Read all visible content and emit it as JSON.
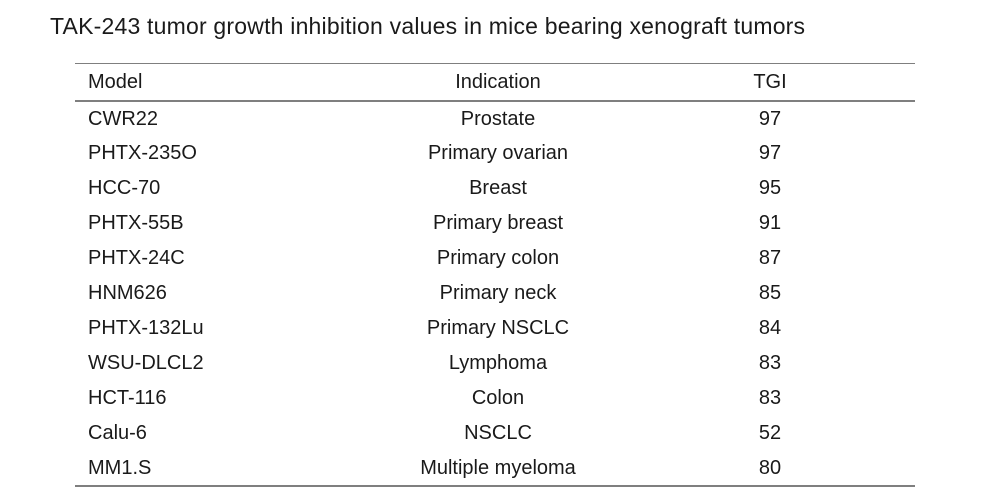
{
  "title": "TAK-243 tumor growth inhibition values in mice bearing xenograft tumors",
  "chart_data": {
    "type": "table",
    "title": "TAK-243 tumor growth inhibition values in mice bearing xenograft tumors",
    "columns": [
      "Model",
      "Indication",
      "TGI"
    ],
    "rows": [
      [
        "CWR22",
        "Prostate",
        "97"
      ],
      [
        "PHTX-235O",
        "Primary ovarian",
        "97"
      ],
      [
        "HCC-70",
        "Breast",
        "95"
      ],
      [
        "PHTX-55B",
        "Primary breast",
        "91"
      ],
      [
        "PHTX-24C",
        "Primary colon",
        "87"
      ],
      [
        "HNM626",
        "Primary neck",
        "85"
      ],
      [
        "PHTX-132Lu",
        "Primary NSCLC",
        "84"
      ],
      [
        "WSU-DLCL2",
        "Lymphoma",
        "83"
      ],
      [
        "HCT-116",
        "Colon",
        "83"
      ],
      [
        "Calu-6",
        "NSCLC",
        "52"
      ],
      [
        "MM1.S",
        "Multiple myeloma",
        "80"
      ]
    ]
  },
  "colors": {
    "text": "#1a1a1a",
    "rule": "#7f7f7f",
    "background": "#ffffff"
  }
}
